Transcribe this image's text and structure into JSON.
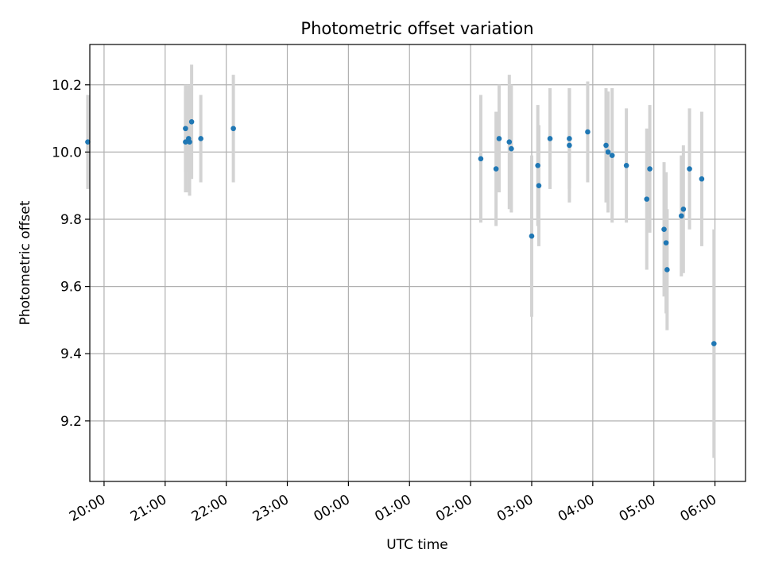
{
  "chart_data": {
    "type": "scatter",
    "title": "Photometric offset variation",
    "xlabel": "UTC time",
    "ylabel": "Photometric offset",
    "xlim": [
      "19:46",
      "06:30"
    ],
    "ylim": [
      9.02,
      10.32
    ],
    "x_ticks": [
      "20:00",
      "21:00",
      "22:00",
      "23:00",
      "00:00",
      "01:00",
      "02:00",
      "03:00",
      "04:00",
      "05:00",
      "06:00"
    ],
    "y_ticks": [
      "9.2",
      "9.4",
      "9.6",
      "9.8",
      "10.0",
      "10.2"
    ],
    "grid": true,
    "colors": {
      "point": "#1f77b4",
      "errorbar": "#d3d3d3",
      "grid": "#b0b0b0",
      "axis": "#000000"
    },
    "points": [
      {
        "x": "19:44",
        "y": 10.03,
        "err": 0.14
      },
      {
        "x": "21:20",
        "y": 10.07,
        "err": 0.13
      },
      {
        "x": "21:20",
        "y": 10.03,
        "err": 0.15
      },
      {
        "x": "21:23",
        "y": 10.04,
        "err": 0.16
      },
      {
        "x": "21:24",
        "y": 10.03,
        "err": 0.16
      },
      {
        "x": "21:26",
        "y": 10.09,
        "err": 0.17
      },
      {
        "x": "21:35",
        "y": 10.04,
        "err": 0.13
      },
      {
        "x": "22:07",
        "y": 10.07,
        "err": 0.16
      },
      {
        "x": "02:10",
        "y": 9.98,
        "err": 0.19
      },
      {
        "x": "02:25",
        "y": 9.95,
        "err": 0.17
      },
      {
        "x": "02:28",
        "y": 10.04,
        "err": 0.16
      },
      {
        "x": "02:38",
        "y": 10.03,
        "err": 0.2
      },
      {
        "x": "02:40",
        "y": 10.01,
        "err": 0.19
      },
      {
        "x": "03:00",
        "y": 9.75,
        "err": 0.24
      },
      {
        "x": "03:06",
        "y": 9.96,
        "err": 0.18
      },
      {
        "x": "03:07",
        "y": 9.9,
        "err": 0.18
      },
      {
        "x": "03:18",
        "y": 10.04,
        "err": 0.15
      },
      {
        "x": "03:37",
        "y": 10.04,
        "err": 0.15
      },
      {
        "x": "03:37",
        "y": 10.02,
        "err": 0.17
      },
      {
        "x": "03:55",
        "y": 10.06,
        "err": 0.15
      },
      {
        "x": "04:13",
        "y": 10.02,
        "err": 0.17
      },
      {
        "x": "04:15",
        "y": 10.0,
        "err": 0.18
      },
      {
        "x": "04:19",
        "y": 9.99,
        "err": 0.2
      },
      {
        "x": "04:33",
        "y": 9.96,
        "err": 0.17
      },
      {
        "x": "04:53",
        "y": 9.86,
        "err": 0.21
      },
      {
        "x": "04:56",
        "y": 9.95,
        "err": 0.19
      },
      {
        "x": "05:10",
        "y": 9.77,
        "err": 0.2
      },
      {
        "x": "05:12",
        "y": 9.73,
        "err": 0.21
      },
      {
        "x": "05:13",
        "y": 9.65,
        "err": 0.18
      },
      {
        "x": "05:27",
        "y": 9.81,
        "err": 0.18
      },
      {
        "x": "05:29",
        "y": 9.83,
        "err": 0.19
      },
      {
        "x": "05:35",
        "y": 9.95,
        "err": 0.18
      },
      {
        "x": "05:47",
        "y": 9.92,
        "err": 0.2
      },
      {
        "x": "05:59",
        "y": 9.43,
        "err": 0.34
      }
    ]
  }
}
